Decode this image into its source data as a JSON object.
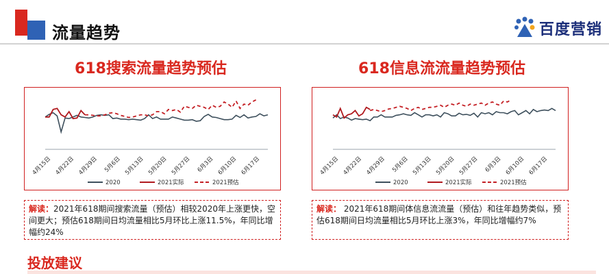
{
  "header": {
    "title": "流量趋势"
  },
  "brand": {
    "name": "百度营销",
    "icon": "baidu-marketing-logo"
  },
  "colors": {
    "accent_red": "#d9281f",
    "accent_blue": "#2f62b5",
    "series_2020": "#3d4f5c",
    "series_actual": "#b0191e",
    "series_forecast": "#c41f24"
  },
  "chart_data": [
    {
      "type": "line",
      "title": "618搜索流量趋势预估",
      "x_ticks": [
        "4月15日",
        "4月22日",
        "4月29日",
        "5月6日",
        "5月13日",
        "5月20日",
        "5月27日",
        "6月3日",
        "6月10日",
        "6月17日"
      ],
      "ylim": [
        0,
        100
      ],
      "grid": false,
      "legend_position": "bottom",
      "series": [
        {
          "name": "2020",
          "style": "solid",
          "x_start": 0,
          "values": [
            58,
            63,
            66,
            60,
            30,
            56,
            55,
            58,
            61,
            58,
            57,
            56,
            58,
            61,
            62,
            61,
            62,
            55,
            56,
            54,
            54,
            53,
            54,
            53,
            52,
            55,
            62,
            55,
            58,
            54,
            54,
            54,
            58,
            56,
            54,
            52,
            52,
            53,
            50,
            51,
            59,
            63,
            58,
            57,
            55,
            53,
            53,
            54,
            61,
            57,
            62,
            56,
            58,
            59,
            64,
            60,
            62
          ]
        },
        {
          "name": "2021实际",
          "style": "solid",
          "x_start": 0,
          "values": [
            58,
            58,
            72,
            74,
            62,
            58,
            68,
            55,
            56,
            70,
            62
          ]
        },
        {
          "name": "2021预估",
          "style": "dashed",
          "x_start": 10,
          "values": [
            62,
            62,
            61,
            60,
            60,
            62,
            65,
            66,
            64,
            61,
            59,
            57,
            58,
            60,
            62,
            62,
            60,
            62,
            68,
            68,
            64,
            72,
            70,
            72,
            67,
            78,
            76,
            74,
            80,
            78,
            76,
            72,
            80,
            76,
            78,
            86,
            82,
            76,
            88,
            74,
            82,
            80,
            86,
            90
          ]
        }
      ]
    },
    {
      "type": "line",
      "title": "618信息流流量趋势预估",
      "x_ticks": [
        "4月15日",
        "4月22日",
        "4月29日",
        "5月6日",
        "5月13日",
        "5月20日",
        "5月27日",
        "6月3日",
        "6月10日",
        "6月17日"
      ],
      "ylim": [
        0,
        100
      ],
      "grid": false,
      "legend_position": "bottom",
      "series": [
        {
          "name": "2020",
          "style": "solid",
          "x_start": 0,
          "values": [
            56,
            62,
            55,
            58,
            56,
            52,
            55,
            54,
            53,
            54,
            51,
            58,
            58,
            62,
            58,
            58,
            58,
            61,
            62,
            64,
            62,
            61,
            66,
            62,
            58,
            62,
            62,
            60,
            62,
            58,
            66,
            64,
            60,
            60,
            65,
            62,
            63,
            61,
            65,
            58,
            66,
            64,
            66,
            62,
            68,
            66,
            66,
            64,
            68,
            70,
            62,
            66,
            70,
            64,
            72,
            68,
            70,
            71,
            70,
            74,
            70
          ]
        },
        {
          "name": "2021实际",
          "style": "solid",
          "x_start": 0,
          "values": [
            62,
            58,
            74,
            56,
            62,
            64,
            70,
            60,
            64,
            76,
            72
          ]
        },
        {
          "name": "2021预估",
          "style": "dashed",
          "x_start": 10,
          "values": [
            70,
            72,
            70,
            68,
            70,
            73,
            74,
            76,
            78,
            76,
            74,
            70,
            74,
            76,
            72,
            74,
            76,
            76,
            78,
            80,
            76,
            80,
            82,
            80,
            84,
            80,
            78,
            82,
            80,
            82,
            84,
            80,
            84,
            86,
            82,
            80,
            88,
            86,
            90
          ]
        }
      ]
    }
  ],
  "legend": {
    "s2020": "2020",
    "actual": "2021实际",
    "forecast": "2021预估"
  },
  "notes": {
    "left_label": "解读：",
    "left_text": "2021年618期间搜索流量（预估）相较2020年上涨更快，空间更大；预估618期间日均流量相比5月环比上涨11.5%，年同比增幅约24%",
    "right_label": "解读：",
    "right_text": " 2021年618期间体信息流流量（预估）和往年趋势类似，预估618期间日均流量相比5月环比上涨3%，年同比增幅约7%"
  },
  "bottom": {
    "title": "投放建议"
  }
}
